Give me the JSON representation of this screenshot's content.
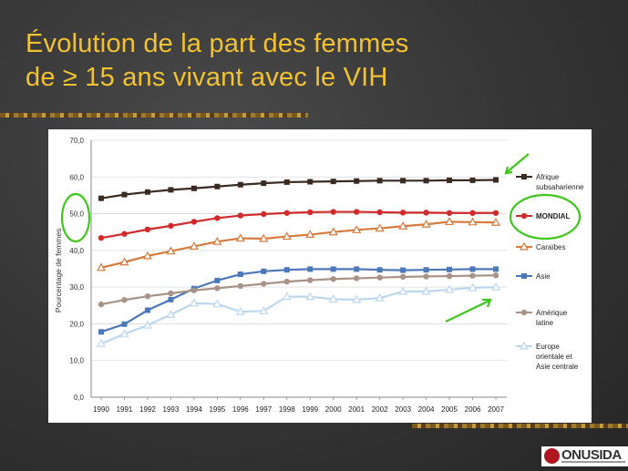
{
  "slide": {
    "title_line1": "Évolution  de la part des femmes",
    "title_line2": "de ≥ 15 ans vivant avec le VIH",
    "logo_text": "ONUSIDA",
    "colors": {
      "title": "#f2c230",
      "annotation": "#3ec61a"
    }
  },
  "chart_data": {
    "type": "line",
    "ylabel": "Pourcentage de femmes",
    "ylim": [
      0,
      70
    ],
    "yticks": [
      "0,0",
      "10,0",
      "20,0",
      "30,0",
      "40,0",
      "50,0",
      "60,0",
      "70,0"
    ],
    "x": [
      "1990",
      "1991",
      "1992",
      "1993",
      "1994",
      "1995",
      "1996",
      "1997",
      "1998",
      "1999",
      "2000",
      "2001",
      "2002",
      "2003",
      "2004",
      "2005",
      "2006",
      "2007"
    ],
    "grid": true,
    "legend_placement": "right",
    "series": [
      {
        "name": "Afrique subsaharienne",
        "color": "#3a2a22",
        "marker": "square",
        "values": [
          54.2,
          55.2,
          55.9,
          56.5,
          56.9,
          57.4,
          57.9,
          58.3,
          58.6,
          58.7,
          58.8,
          58.9,
          59.0,
          59.0,
          59.0,
          59.1,
          59.1,
          59.2
        ]
      },
      {
        "name": "MONDIAL",
        "color": "#d02a2a",
        "marker": "circle",
        "values": [
          43.4,
          44.5,
          45.7,
          46.7,
          47.8,
          48.8,
          49.5,
          49.9,
          50.2,
          50.4,
          50.5,
          50.5,
          50.4,
          50.3,
          50.3,
          50.2,
          50.2,
          50.2
        ]
      },
      {
        "name": "Caraïbes",
        "color": "#d87a3c",
        "marker": "triangle",
        "values": [
          35.3,
          36.8,
          38.5,
          39.8,
          41.1,
          42.4,
          43.3,
          43.2,
          43.8,
          44.3,
          45.0,
          45.6,
          46.0,
          46.6,
          47.1,
          47.8,
          47.7,
          47.6
        ]
      },
      {
        "name": "Asie",
        "color": "#4a78b8",
        "marker": "square",
        "values": [
          17.8,
          19.9,
          23.7,
          26.6,
          29.6,
          31.8,
          33.5,
          34.3,
          34.7,
          34.9,
          34.9,
          34.9,
          34.7,
          34.6,
          34.7,
          34.8,
          34.9,
          34.9
        ]
      },
      {
        "name": "Amérique latine",
        "color": "#a99286",
        "marker": "circle",
        "values": [
          25.3,
          26.5,
          27.5,
          28.3,
          29.1,
          29.7,
          30.3,
          30.9,
          31.5,
          31.9,
          32.2,
          32.4,
          32.6,
          32.8,
          32.9,
          33.0,
          33.1,
          33.2
        ]
      },
      {
        "name": "Europe orientale et Asie centrale",
        "color": "#bcd7ef",
        "marker": "triangle",
        "values": [
          14.6,
          17.2,
          19.6,
          22.5,
          25.6,
          25.4,
          23.3,
          23.5,
          27.4,
          27.4,
          26.7,
          26.6,
          27.0,
          28.8,
          28.8,
          29.3,
          29.8,
          30.0
        ]
      }
    ],
    "legend_lines": [
      [
        "Afrique",
        "subsaharienne"
      ],
      [
        "MONDIAL"
      ],
      [
        "Caraïbes"
      ],
      [
        "Asie"
      ],
      [
        "Amérique",
        "latine"
      ],
      [
        "Europe",
        "orientale et",
        "Asie centrale"
      ]
    ]
  }
}
